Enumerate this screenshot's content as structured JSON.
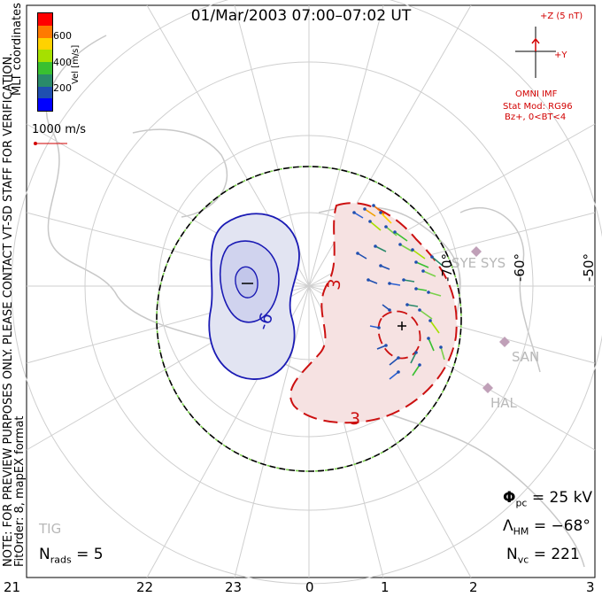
{
  "header": {
    "title": "01/Mar/2003 07:00–07:02 UT"
  },
  "side_notes": {
    "coords": "MLT coordinates",
    "preview_note": "NOTE: FOR PREVIEW PURPOSES ONLY. PLEASE CONTACT VT-SD STAFF FOR VERIFICATION.",
    "fit_order": "FitOrder: 8, mapEX format"
  },
  "velocity_scale": {
    "label": "Vel [m/s]",
    "ticks": [
      "600",
      "400",
      "200"
    ],
    "colors": [
      "#ff0000",
      "#ff7a00",
      "#ffd200",
      "#a6e000",
      "#39c030",
      "#2a8a6a",
      "#1f4fb0",
      "#0000ff"
    ],
    "reference_label": "1000 m/s"
  },
  "imf": {
    "z_label": "+Z (5 nT)",
    "y_label": "+Y",
    "source": "OMNI IMF",
    "model": "Stat Mod: RG96",
    "condition": "Bz+, 0<BT<4"
  },
  "contour_labels": {
    "negative": "-6",
    "positive_upper": "3",
    "positive_lower": "3"
  },
  "latitude_labels": [
    "-70°",
    "-60°",
    "-50°"
  ],
  "stations": [
    "SYE SYS",
    "SAN",
    "HAL",
    "TIG"
  ],
  "stats": {
    "phi_symbol": "Φ",
    "phi_sub": "pc",
    "phi_value": "= 25 kV",
    "lambda_symbol": "Λ",
    "lambda_sub": "HM",
    "lambda_value": "= −68°",
    "nvc_symbol": "N",
    "nvc_sub": "vc",
    "nvc_value": "= 221",
    "nrads_symbol": "N",
    "nrads_sub": "rads",
    "nrads_value": "= 5"
  },
  "mlt_ticks": [
    "21",
    "22",
    "23",
    "0",
    "1",
    "2",
    "3"
  ]
}
